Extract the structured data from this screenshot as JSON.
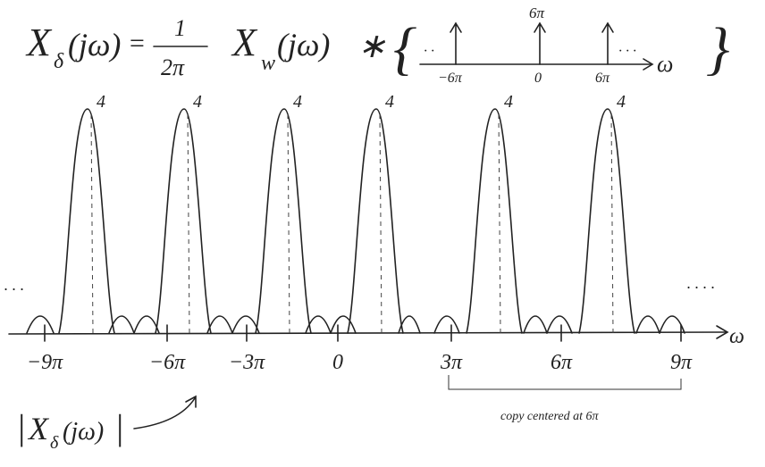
{
  "equation": {
    "lhs_base": "X",
    "lhs_sub": "δ",
    "lhs_arg": "(jω)",
    "equals": "=",
    "numerator": "1",
    "denominator": "2π",
    "term_base": "X",
    "term_sub": "w",
    "term_arg": "(jω)",
    "operator": "∗",
    "open_brace": "{",
    "close_brace": "}"
  },
  "impulse_train": {
    "height_label": "6π",
    "tick_labels": [
      "−6π",
      "0",
      "6π"
    ],
    "axis_label": "ω",
    "dots_left": "· ·",
    "dots_right": "· · ·"
  },
  "peaks": {
    "labels": [
      "4",
      "4",
      "4",
      "4",
      "4",
      "4"
    ]
  },
  "axis": {
    "tick_labels": [
      "−9π",
      "−6π",
      "−3π",
      "0",
      "3π",
      "6π",
      "9π"
    ],
    "label": "ω",
    "dots_left": "· · ·",
    "dots_right": "· · · ·"
  },
  "magnitude": {
    "bar_left": "|",
    "base": "X",
    "sub": "δ",
    "arg": "(jω)",
    "bar_right": "|"
  },
  "bracket_note": "copy centered at 6π"
}
